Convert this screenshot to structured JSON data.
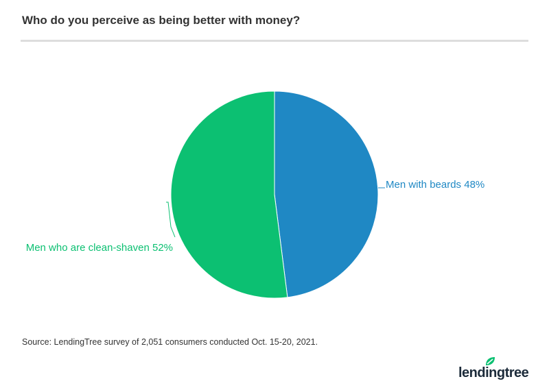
{
  "chart_data": {
    "type": "pie",
    "title": "Who do you perceive as being better with money?",
    "slices": [
      {
        "label": "Men with beards",
        "value": 48,
        "display": "Men with beards 48%",
        "color": "#1f88c4"
      },
      {
        "label": "Men who are clean-shaven",
        "value": 52,
        "display": "Men who are clean-shaven 52%",
        "color": "#0cc072"
      }
    ],
    "source": "Source: LendingTree survey of 2,051 consumers conducted Oct. 15-20, 2021."
  },
  "logo": {
    "text": "lendingtree",
    "leaf_color": "#0cc072"
  }
}
